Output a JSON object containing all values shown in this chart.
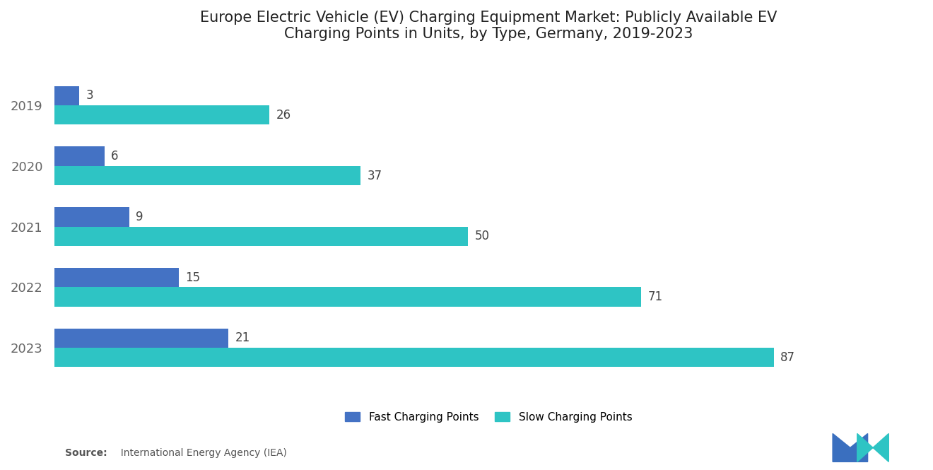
{
  "title": "Europe Electric Vehicle (EV) Charging Equipment Market: Publicly Available EV\nCharging Points in Units, by Type, Germany, 2019-2023",
  "years": [
    "2019",
    "2020",
    "2021",
    "2022",
    "2023"
  ],
  "fast_values": [
    3,
    6,
    9,
    15,
    21
  ],
  "slow_values": [
    26,
    37,
    50,
    71,
    87
  ],
  "fast_color": "#4472C4",
  "slow_color": "#2EC4C4",
  "background_color": "#ffffff",
  "bar_height": 0.32,
  "bar_gap": 0.0,
  "legend_labels": [
    "Fast Charging Points",
    "Slow Charging Points"
  ],
  "source_bold": "Source:",
  "source_rest": "  International Energy Agency (IEA)",
  "xlim": [
    0,
    105
  ],
  "title_fontsize": 15,
  "label_fontsize": 11,
  "tick_fontsize": 13,
  "annotation_fontsize": 12,
  "year_color": "#666666"
}
